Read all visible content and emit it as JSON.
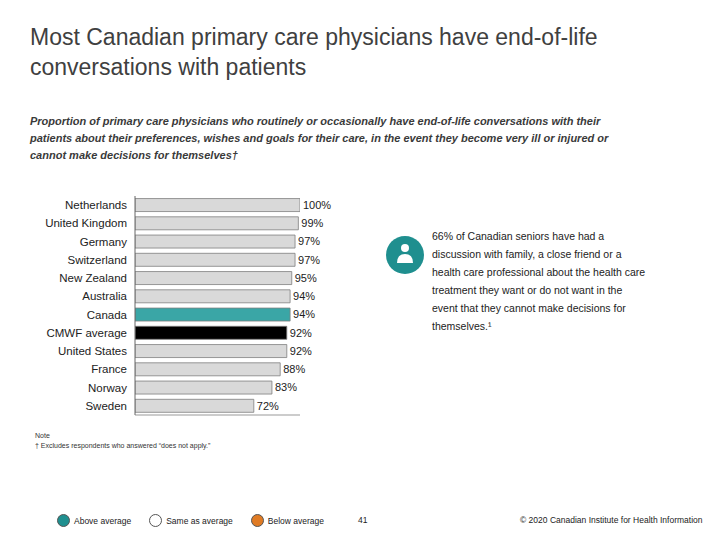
{
  "chart_data": {
    "type": "bar",
    "orientation": "horizontal",
    "title": "Most Canadian primary care physicians have end-of-life conversations with patients",
    "subtitle": "Proportion of primary care physicians who routinely or occasionally have end-of-life conversations with their patients about their preferences, wishes and goals for their care, in the event they become very ill or injured or cannot make decisions for themselves†",
    "categories": [
      "Netherlands",
      "United Kingdom",
      "Germany",
      "Switzerland",
      "New Zealand",
      "Australia",
      "Canada",
      "CMWF average",
      "United States",
      "France",
      "Norway",
      "Sweden"
    ],
    "values": [
      100,
      99,
      97,
      97,
      95,
      94,
      94,
      92,
      92,
      88,
      83,
      72
    ],
    "value_labels": [
      "100%",
      "99%",
      "97%",
      "97%",
      "95%",
      "94%",
      "94%",
      "92%",
      "92%",
      "88%",
      "83%",
      "72%"
    ],
    "colors": [
      "#d9d9d9",
      "#d9d9d9",
      "#d9d9d9",
      "#d9d9d9",
      "#d9d9d9",
      "#d9d9d9",
      "#3aa6a6",
      "#000000",
      "#d9d9d9",
      "#d9d9d9",
      "#d9d9d9",
      "#d9d9d9"
    ],
    "xlim": [
      0,
      100
    ],
    "tick_labels": "y",
    "data_labels": true,
    "annotation": "66% of Canadian seniors have had a discussion with family, a close friend or a health care professional about the health care treatment they want or do not want in the event that they cannot make decisions for themselves.¹",
    "note": [
      "Note",
      "† Excludes respondents who answered “does not apply.”"
    ],
    "legend_entries": [
      {
        "name": "Above average",
        "color": "#1f8f8f"
      },
      {
        "name": "Same as average",
        "color": "#ffffff"
      },
      {
        "name": "Below average",
        "color": "#e07b24"
      }
    ],
    "page": "41",
    "copyright": "© 2020 Canadian Institute for Health Information"
  }
}
